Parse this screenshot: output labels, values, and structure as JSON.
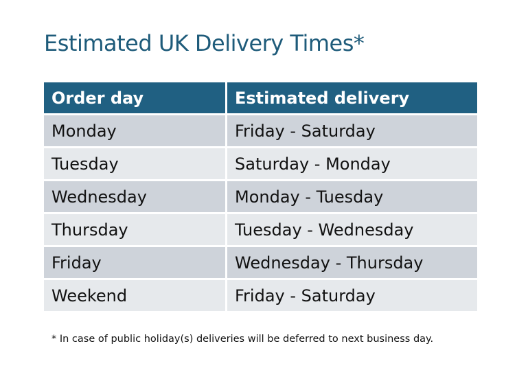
{
  "title": "Estimated UK Delivery Times*",
  "table": {
    "headers": [
      "Order day",
      "Estimated delivery"
    ],
    "rows": [
      [
        "Monday",
        "Friday - Saturday"
      ],
      [
        "Tuesday",
        "Saturday - Monday"
      ],
      [
        "Wednesday",
        "Monday - Tuesday"
      ],
      [
        "Thursday",
        "Tuesday - Wednesday"
      ],
      [
        "Friday",
        "Wednesday - Thursday"
      ],
      [
        "Weekend",
        "Friday - Saturday"
      ]
    ]
  },
  "footnote": "* In case of public holiday(s) deliveries will be deferred to next business day.",
  "colors": {
    "header": "#206082",
    "title": "#1e5b7a",
    "row_dark": "#ced3da",
    "row_light": "#e6e9ec"
  }
}
